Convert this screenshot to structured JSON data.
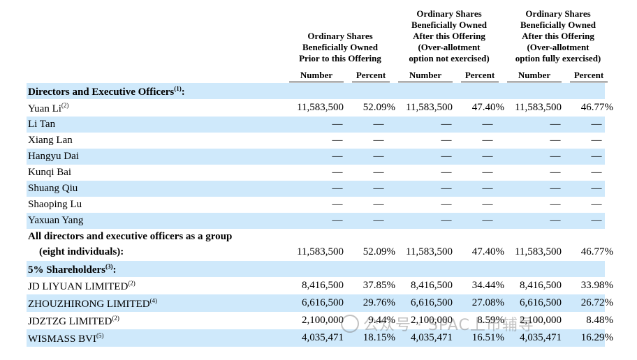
{
  "header": {
    "groups": [
      {
        "lines": [
          "Ordinary Shares",
          "Beneficially Owned",
          "Prior to this Offering"
        ]
      },
      {
        "lines": [
          "Ordinary Shares",
          "Beneficially Owned",
          "After this Offering",
          "(Over-allotment",
          "option not exercised)"
        ]
      },
      {
        "lines": [
          "Ordinary Shares",
          "Beneficially Owned",
          "After this Offering",
          "(Over-allotment",
          "option fully exercised)"
        ]
      }
    ],
    "sub": [
      "Number",
      "Percent",
      "Number",
      "Percent",
      "Number",
      "Percent"
    ]
  },
  "rows": [
    {
      "label": "Directors and Executive Officers",
      "sup": "(1)",
      "suffix": ":",
      "bold": true,
      "values": null
    },
    {
      "label": "Yuan Li",
      "sup": "(2)",
      "values": [
        "11,583,500",
        "52.09%",
        "11,583,500",
        "47.40%",
        "11,583,500",
        "46.77%"
      ]
    },
    {
      "label": "Li Tan",
      "values": [
        "—",
        "—",
        "—",
        "—",
        "—",
        "—"
      ]
    },
    {
      "label": "Xiang Lan",
      "values": [
        "—",
        "—",
        "—",
        "—",
        "—",
        "—"
      ]
    },
    {
      "label": "Hangyu Dai",
      "values": [
        "—",
        "—",
        "—",
        "—",
        "—",
        "—"
      ]
    },
    {
      "label": "Kunqi Bai",
      "values": [
        "—",
        "—",
        "—",
        "—",
        "—",
        "—"
      ]
    },
    {
      "label": "Shuang Qiu",
      "values": [
        "—",
        "—",
        "—",
        "—",
        "—",
        "—"
      ]
    },
    {
      "label": "Shaoping Lu",
      "values": [
        "—",
        "—",
        "—",
        "—",
        "—",
        "—"
      ]
    },
    {
      "label": "Yaxuan Yang",
      "values": [
        "—",
        "—",
        "—",
        "—",
        "—",
        "—"
      ]
    },
    {
      "label": "All directors and executive officers as a group",
      "label2": "(eight individuals):",
      "bold": true,
      "values": [
        "11,583,500",
        "52.09%",
        "11,583,500",
        "47.40%",
        "11,583,500",
        "46.77%"
      ]
    },
    {
      "label": "5% Shareholders",
      "sup": "(3)",
      "suffix": ":",
      "bold": true,
      "values": null
    },
    {
      "label": "JD LIYUAN LIMITED",
      "sup": "(2)",
      "values": [
        "8,416,500",
        "37.85%",
        "8,416,500",
        "34.44%",
        "8,416,500",
        "33.98%"
      ]
    },
    {
      "label": "ZHOUZHIRONG LIMITED",
      "sup": "(4)",
      "values": [
        "6,616,500",
        "29.76%",
        "6,616,500",
        "27.08%",
        "6,616,500",
        "26.72%"
      ]
    },
    {
      "label": "JDZTZG LIMITED",
      "sup": "(2)",
      "values": [
        "2,100,000",
        "9.44%",
        "2,100,000",
        "8.59%",
        "2,100,000",
        "8.48%"
      ]
    },
    {
      "label": "WISMASS BVI",
      "sup": "(5)",
      "values": [
        "4,035,471",
        "18.15%",
        "4,035,471",
        "16.51%",
        "4,035,471",
        "16.29%"
      ]
    }
  ],
  "watermark": {
    "text": "公众号 · SPAC上市辅导"
  }
}
